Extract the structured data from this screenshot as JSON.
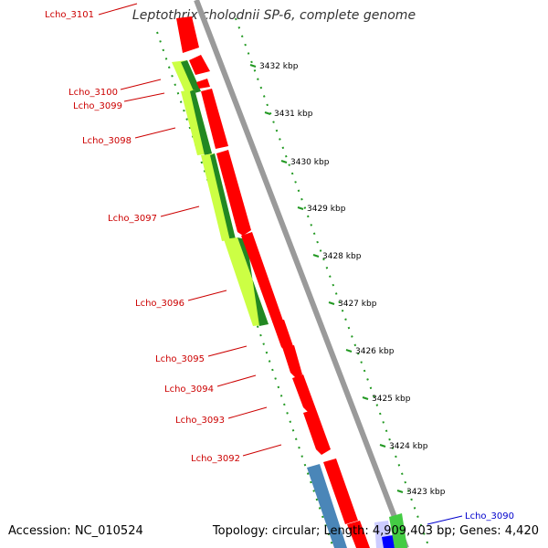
{
  "map": {
    "title": "Leptothrix cholodnii SP-6, complete genome",
    "accession": "Accession: NC_010524",
    "topology": "Topology: circular; Length: 4,909,403 bp; Genes: 4,420"
  },
  "colors": {
    "forward_gene": "#ff0000",
    "reverse_gene": "#3399cc",
    "backbone": "#888888",
    "tick": "#229922",
    "gene_label": "#cc0000",
    "gene_label_alt": "#0000cc",
    "similarity_light": "#ccff44",
    "similarity_dark": "#228822"
  },
  "scale_ticks": [
    {
      "label": "3432 kbp"
    },
    {
      "label": "3431 kbp"
    },
    {
      "label": "3430 kbp"
    },
    {
      "label": "3429 kbp"
    },
    {
      "label": "3428 kbp"
    },
    {
      "label": "3427 kbp"
    },
    {
      "label": "3426 kbp"
    },
    {
      "label": "3425 kbp"
    },
    {
      "label": "3424 kbp"
    },
    {
      "label": "3423 kbp"
    }
  ],
  "gene_labels": [
    {
      "name": "Lcho_3101"
    },
    {
      "name": "Lcho_3100"
    },
    {
      "name": "Lcho_3099"
    },
    {
      "name": "Lcho_3098"
    },
    {
      "name": "Lcho_3097"
    },
    {
      "name": "Lcho_3096"
    },
    {
      "name": "Lcho_3095"
    },
    {
      "name": "Lcho_3094"
    },
    {
      "name": "Lcho_3093"
    },
    {
      "name": "Lcho_3092"
    },
    {
      "name": "Lcho_3090"
    }
  ]
}
